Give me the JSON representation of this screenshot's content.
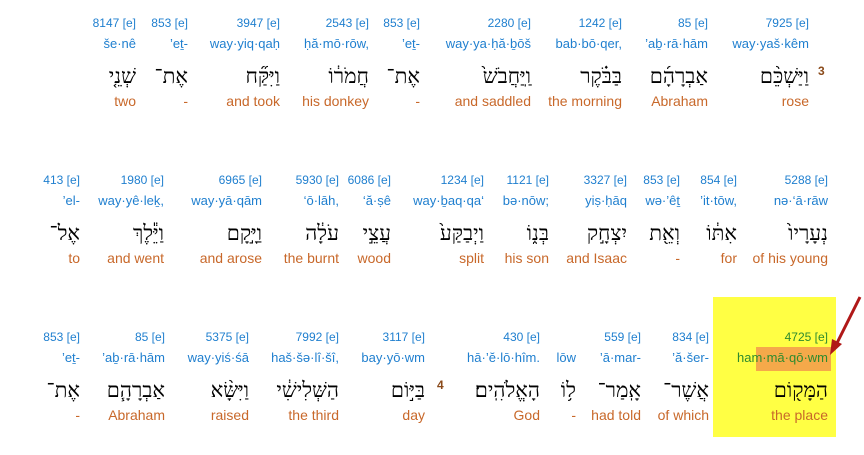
{
  "rows": [
    {
      "verse": "3",
      "words": [
        {
          "num": "7925 [e]",
          "translit": "way·yaš·kêm",
          "hebrew": "וַיַּשְׁכֵּ֨ם",
          "gloss": "rose"
        },
        {
          "num": "85 [e]",
          "translit": "’aḇ·rā·hām",
          "hebrew": "אַבְרָהָ֜ם",
          "gloss": "Abraham"
        },
        {
          "num": "1242 [e]",
          "translit": "bab·bō·qer,",
          "hebrew": "בַּבֹּ֗קֶר",
          "gloss": "the morning"
        },
        {
          "num": "2280 [e]",
          "translit": "way·ya·ḥă·ḇōš",
          "hebrew": "וַֽיַּחֲבֹשׁ֙",
          "gloss": "and saddled"
        },
        {
          "num": "853 [e]",
          "translit": "’eṯ-",
          "hebrew": "אֶת־",
          "gloss": "-"
        },
        {
          "num": "2543 [e]",
          "translit": "ḥă·mō·rōw,",
          "hebrew": "חֲמֹר֔וֹ",
          "gloss": "his donkey"
        },
        {
          "num": "3947 [e]",
          "translit": "way·yiq·qaḥ",
          "hebrew": "וַיִּקַּ֞ח",
          "gloss": "and took"
        },
        {
          "num": "853 [e]",
          "translit": "’eṯ-",
          "hebrew": "אֶת־",
          "gloss": "-"
        },
        {
          "num": "8147 [e]",
          "translit": "še·nê",
          "hebrew": "שְׁנֵ֤י",
          "gloss": "two"
        }
      ]
    },
    {
      "verse": "",
      "words": [
        {
          "num": "5288 [e]",
          "translit": "nə·‘ā·rāw",
          "hebrew": "נְעָרָיו֙",
          "gloss": "of his young"
        },
        {
          "num": "854 [e]",
          "translit": "’it·tōw,",
          "hebrew": "אִתּ֔וֹ",
          "gloss": "for"
        },
        {
          "num": "853 [e]",
          "translit": "wə·’êṯ",
          "hebrew": "וְאֵ֖ת",
          "gloss": "-"
        },
        {
          "num": "3327 [e]",
          "translit": "yiṣ·ḥāq",
          "hebrew": "יִצְחָ֣ק",
          "gloss": "and Isaac"
        },
        {
          "num": "1121 [e]",
          "translit": "bə·nōw;",
          "hebrew": "בְּנ֑וֹ",
          "gloss": "his son"
        },
        {
          "num": "1234 [e]",
          "translit": "way·ḇaq·qa‘",
          "hebrew": "וַיְבַקַּע֙",
          "gloss": "split"
        },
        {
          "num": "6086 [e]",
          "translit": "‘ă·ṣê",
          "hebrew": "עֲצֵ֣י",
          "gloss": "wood"
        },
        {
          "num": "5930 [e]",
          "translit": "‘ō·lāh,",
          "hebrew": "עֹלָ֔ה",
          "gloss": "the burnt"
        },
        {
          "num": "6965 [e]",
          "translit": "way·yā·qām",
          "hebrew": "וַיָּ֣קָם",
          "gloss": "and arose"
        },
        {
          "num": "1980 [e]",
          "translit": "way·yê·leḵ,",
          "hebrew": "וַיֵּ֕לֶךְ",
          "gloss": "and went"
        },
        {
          "num": "413 [e]",
          "translit": "’el-",
          "hebrew": "אֶל־",
          "gloss": "to"
        }
      ]
    },
    {
      "verse": "4",
      "words": [
        {
          "num": "4725 [e]",
          "translit": "ham·mā·qō·wm",
          "hebrew": "הַמָּק֖וֹם",
          "gloss": "the place",
          "highlight": true
        },
        {
          "num": "834 [e]",
          "translit": "’ă·šer-",
          "hebrew": "אֲשֶׁר־",
          "gloss": "of which"
        },
        {
          "num": "559 [e]",
          "translit": "’ā·mar-",
          "hebrew": "אָֽמַר־",
          "gloss": "had told"
        },
        {
          "num": "",
          "translit": "lōw",
          "hebrew": "ל֥וֹ",
          "gloss": "-"
        },
        {
          "num": "430 [e]",
          "translit": "hā·’ĕ·lō·hîm.",
          "hebrew": "הָאֱלֹהִֽים׃",
          "gloss": "God"
        },
        {
          "num": "3117 [e]",
          "translit": "bay·yō·wm",
          "hebrew": "בַּיּ֣וֹם",
          "gloss": "day"
        },
        {
          "num": "7992 [e]",
          "translit": "haš·šə·lî·šî,",
          "hebrew": "הַשְּׁלִישִׁ֔י",
          "gloss": "the third"
        },
        {
          "num": "5375 [e]",
          "translit": "way·yiś·śā",
          "hebrew": "וַיִּשָּׂ֨א",
          "gloss": "raised"
        },
        {
          "num": "85 [e]",
          "translit": "’aḇ·rā·hām",
          "hebrew": "אַבְרָהָ֧ם",
          "gloss": "Abraham"
        },
        {
          "num": "853 [e]",
          "translit": "’eṯ-",
          "hebrew": "אֶת־",
          "gloss": "-"
        }
      ]
    }
  ],
  "colors": {
    "highlight": "#ffff44",
    "highlight_inner": "#f5a94a",
    "arrow": "#b01818"
  },
  "icons": {
    "pointer": "arrow-pointer-icon"
  }
}
